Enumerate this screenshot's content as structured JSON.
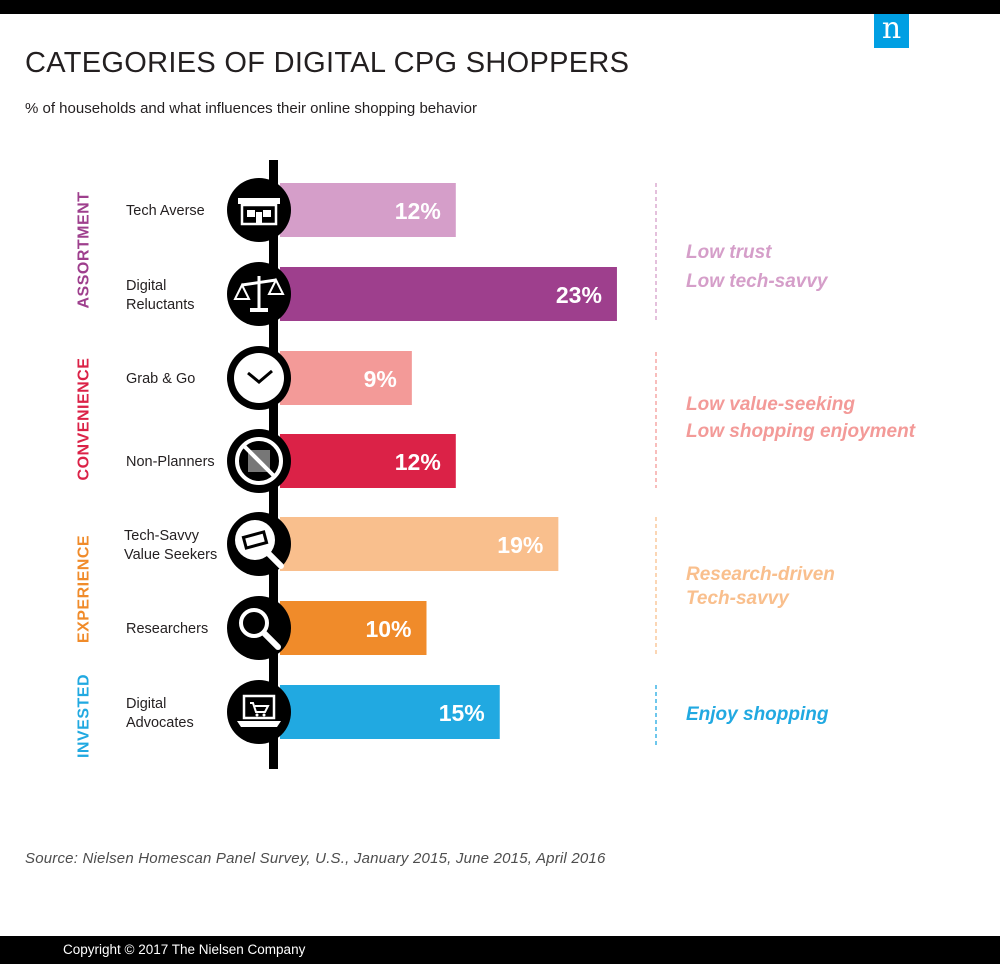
{
  "brand": {
    "logo_letter": "n",
    "color": "#009fe3"
  },
  "header": {
    "title": "CATEGORIES OF DIGITAL CPG SHOPPERS",
    "subtitle": "% of households and what influences their online shopping behavior"
  },
  "chart_data": {
    "type": "bar",
    "orientation": "horizontal",
    "value_unit": "%",
    "categories": [
      "Tech Averse",
      "Digital Reluctants",
      "Grab & Go",
      "Non-Planners",
      "Tech-Savvy Value Seekers",
      "Researchers",
      "Digital Advocates"
    ],
    "values": [
      12,
      23,
      9,
      12,
      19,
      10,
      15
    ],
    "data_labels": [
      "12%",
      "23%",
      "9%",
      "12%",
      "19%",
      "10%",
      "15%"
    ],
    "bar_colors": [
      "#d59ec9",
      "#9e3f8d",
      "#f39a98",
      "#db2247",
      "#f9bf8d",
      "#f08b2a",
      "#21a9e1"
    ],
    "icons": [
      "store-icon",
      "scale-icon",
      "clock-icon",
      "no-calendar-icon",
      "money-magnifier-icon",
      "magnifier-icon",
      "laptop-cart-icon"
    ],
    "groups": [
      {
        "label": "ASSORTMENT",
        "color": "#9e3f8d",
        "accent_color": "#d59ec9",
        "members": [
          0,
          1
        ],
        "traits": [
          "Low trust",
          "Low tech-savvy"
        ]
      },
      {
        "label": "CONVENIENCE",
        "color": "#db2247",
        "accent_color": "#f39a98",
        "members": [
          2,
          3
        ],
        "traits": [
          "Low value-seeking",
          "Low shopping enjoyment"
        ]
      },
      {
        "label": "EXPERIENCE",
        "color": "#f08b2a",
        "accent_color": "#f9bf8d",
        "members": [
          4,
          5
        ],
        "traits": [
          "Research-driven",
          "Tech-savvy"
        ]
      },
      {
        "label": "INVESTED",
        "color": "#21a9e1",
        "accent_color": "#21a9e1",
        "members": [
          6
        ],
        "traits": [
          "Enjoy shopping"
        ]
      }
    ],
    "xlim": [
      0,
      23
    ]
  },
  "source": "Source: Nielsen Homescan Panel Survey, U.S., January 2015, June 2015, April 2016",
  "copyright": "Copyright © 2017 The Nielsen Company"
}
